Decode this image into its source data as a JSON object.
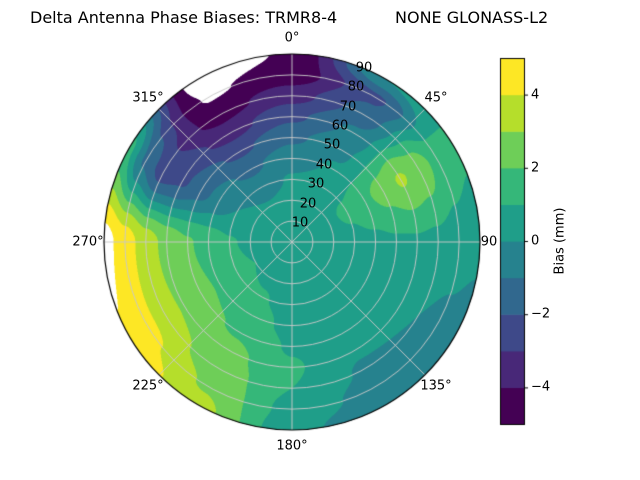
{
  "header": {
    "title_left": "Delta Antenna Phase Biases: TRMR8-4",
    "title_right": "NONE GLONASS-L2"
  },
  "chart_data": {
    "type": "heatmap",
    "projection": "polar-contourf",
    "title": "Delta Antenna Phase Biases: TRMR8-4        NONE GLONASS-L2",
    "colormap": "viridis",
    "grid": "on",
    "azimuth_tick_labels": [
      "0°",
      "45°",
      "90",
      "135°",
      "180°",
      "225°",
      "270°",
      "315°"
    ],
    "radial_tick_labels": [
      "10",
      "20",
      "30",
      "40",
      "50",
      "60",
      "70",
      "80",
      "90"
    ],
    "levels_mm": [
      -5,
      -4,
      -3,
      -2,
      -1,
      0,
      1,
      2,
      3,
      4,
      5
    ],
    "band_colors": [
      "#440154",
      "#482878",
      "#3e4989",
      "#31688e",
      "#26828e",
      "#1f9e89",
      "#35b779",
      "#6ece58",
      "#b5de2b",
      "#fde725"
    ],
    "out_of_range_color": "#ffffff",
    "azimuth_deg": [
      0,
      30,
      60,
      90,
      120,
      150,
      180,
      210,
      240,
      270,
      300,
      330,
      360
    ],
    "zenith_deg": [
      0,
      10,
      20,
      30,
      40,
      50,
      60,
      70,
      80,
      90
    ],
    "bias_mm": [
      [
        0.5,
        0.4,
        0.3,
        0.1,
        -0.4,
        -1.2,
        -2.2,
        -3.4,
        -4.6,
        -4.9
      ],
      [
        0.5,
        0.5,
        0.4,
        0.3,
        0.1,
        -0.2,
        -0.8,
        -1.6,
        -2.2,
        0.0
      ],
      [
        0.5,
        0.6,
        0.8,
        1.2,
        1.8,
        2.4,
        3.1,
        2.6,
        1.6,
        1.2
      ],
      [
        0.5,
        0.5,
        0.6,
        0.7,
        0.8,
        0.9,
        0.9,
        0.8,
        0.6,
        0.3
      ],
      [
        0.5,
        0.4,
        0.4,
        0.3,
        0.3,
        0.2,
        0.1,
        0.0,
        -0.3,
        -0.6
      ],
      [
        0.5,
        0.4,
        0.3,
        0.3,
        0.2,
        0.2,
        0.1,
        -0.1,
        -0.4,
        -0.9
      ],
      [
        0.5,
        0.5,
        0.5,
        0.6,
        0.7,
        0.9,
        1.1,
        1.0,
        0.7,
        0.3
      ],
      [
        0.5,
        0.6,
        0.8,
        1.1,
        1.5,
        1.9,
        2.3,
        2.6,
        2.9,
        3.3
      ],
      [
        0.5,
        0.7,
        1.0,
        1.4,
        1.9,
        2.3,
        2.9,
        3.5,
        4.3,
        4.9
      ],
      [
        0.5,
        0.6,
        0.8,
        1.1,
        1.6,
        2.1,
        2.7,
        3.5,
        4.5,
        5.4
      ],
      [
        0.5,
        0.5,
        0.3,
        0.0,
        -0.6,
        -1.4,
        -2.2,
        -2.6,
        -1.2,
        1.3
      ],
      [
        0.5,
        0.4,
        0.1,
        -0.5,
        -1.2,
        -2.2,
        -3.4,
        -4.4,
        -5.1,
        -5.6
      ],
      [
        0.5,
        0.4,
        0.3,
        0.1,
        -0.4,
        -1.2,
        -2.2,
        -3.4,
        -4.6,
        -4.9
      ]
    ],
    "colorbar": {
      "label": "Bias (mm)",
      "tick_labels": [
        "4",
        "2",
        "0",
        "−2",
        "−4"
      ],
      "tick_values": [
        4,
        2,
        0,
        -2,
        -4
      ],
      "range_mm": [
        -5,
        5
      ]
    }
  }
}
